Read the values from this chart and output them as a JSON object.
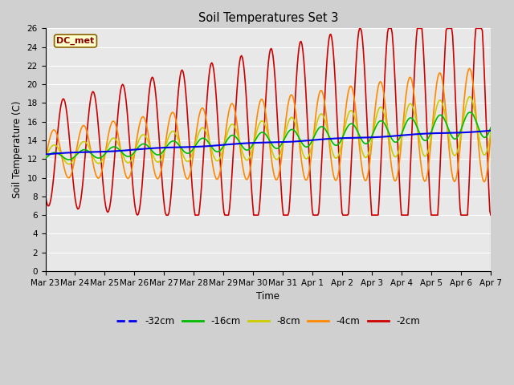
{
  "title": "Soil Temperatures Set 3",
  "xlabel": "Time",
  "ylabel": "Soil Temperature (C)",
  "annotation": "DC_met",
  "ylim": [
    0,
    26
  ],
  "yticks": [
    0,
    2,
    4,
    6,
    8,
    10,
    12,
    14,
    16,
    18,
    20,
    22,
    24,
    26
  ],
  "fig_facecolor": "#d0d0d0",
  "ax_facecolor": "#e8e8e8",
  "series_colors": {
    "-32cm": "#0000ee",
    "-16cm": "#00bb00",
    "-8cm": "#cccc00",
    "-4cm": "#ff8800",
    "-2cm": "#cc0000"
  },
  "x_labels": [
    "Mar 23",
    "Mar 24",
    "Mar 25",
    "Mar 26",
    "Mar 27",
    "Mar 28",
    "Mar 29",
    "Mar 30",
    "Mar 31",
    "Apr 1",
    "Apr 2",
    "Apr 3",
    "Apr 4",
    "Apr 5",
    "Apr 6",
    "Apr 7"
  ],
  "legend_entries": [
    "-32cm",
    "-16cm",
    "-8cm",
    "-4cm",
    "-2cm"
  ]
}
